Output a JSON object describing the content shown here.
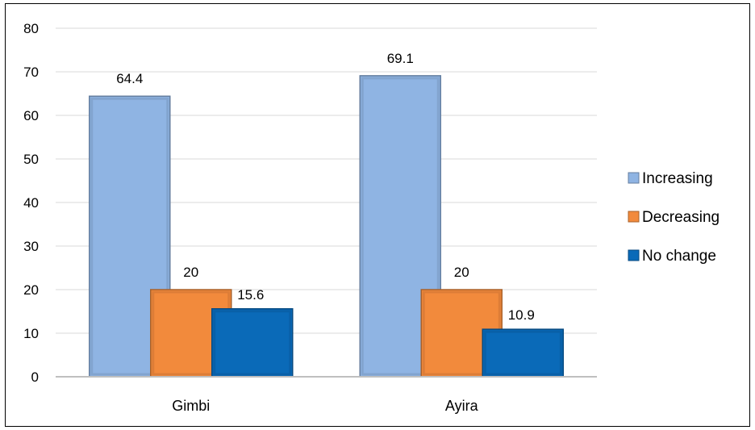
{
  "chart_data": {
    "type": "bar",
    "categories": [
      "Gimbi",
      "Ayira"
    ],
    "series": [
      {
        "name": "Increasing",
        "values": [
          64.4,
          69.1
        ],
        "color": "#8fb4e3"
      },
      {
        "name": "Decreasing",
        "values": [
          20,
          20
        ],
        "color": "#f28a3c"
      },
      {
        "name": "No change",
        "values": [
          15.6,
          10.9
        ],
        "color": "#0a6ab8"
      }
    ],
    "data_labels": [
      [
        "64.4",
        "69.1"
      ],
      [
        "20",
        "20"
      ],
      [
        "15.6",
        "10.9"
      ]
    ],
    "ylim": [
      0,
      80
    ],
    "yticks": [
      0,
      10,
      20,
      30,
      40,
      50,
      60,
      70,
      80
    ],
    "grid": true,
    "legend": "right",
    "title": "",
    "xlabel": "",
    "ylabel": ""
  }
}
